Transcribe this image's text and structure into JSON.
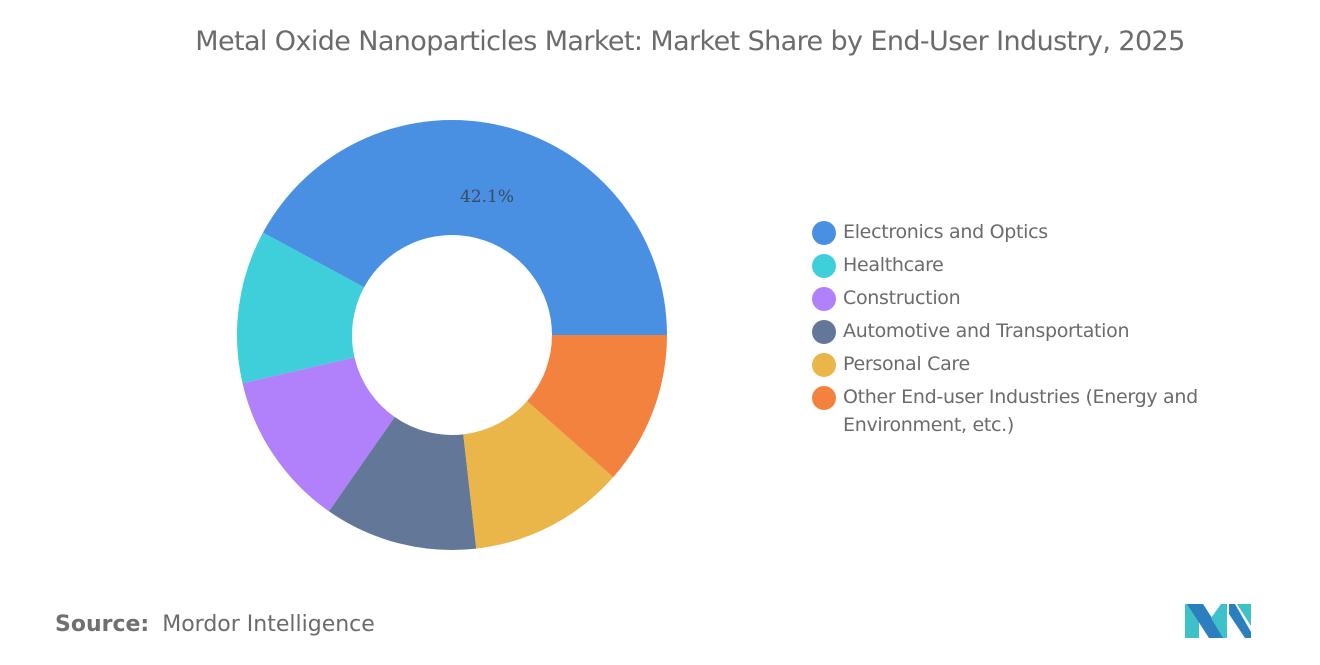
{
  "header": {
    "title": "Metal Oxide Nanoparticles Market: Market Share by End-User Industry, 2025"
  },
  "chart_data": {
    "type": "pie",
    "variant": "donut",
    "title": "Metal Oxide Nanoparticles Market: Market Share by End-User Industry, 2025",
    "categories": [
      "Electronics and Optics",
      "Healthcare",
      "Construction",
      "Automotive and Transportation",
      "Personal Care",
      "Other End-user Industries (Energy and Environment, etc.)"
    ],
    "values": [
      42.1,
      11.5,
      11.7,
      11.5,
      11.7,
      11.5
    ],
    "unit": "%",
    "data_labels": [
      {
        "category": "Electronics and Optics",
        "text": "42.1%"
      }
    ],
    "colors": [
      "#4A90E2",
      "#3FCFDA",
      "#B180FB",
      "#637898",
      "#EBB649",
      "#F3823F"
    ],
    "legend_position": "right",
    "start_angle_deg": 0,
    "direction": "counter-clockwise from 3 o'clock",
    "center": [
      452,
      335
    ],
    "outer_radius": 215,
    "inner_radius": 100
  },
  "legend": {
    "items": [
      {
        "label": "Electronics and Optics",
        "color": "#4A90E2"
      },
      {
        "label": "Healthcare",
        "color": "#3FCFDA"
      },
      {
        "label": "Construction",
        "color": "#B180FB"
      },
      {
        "label": "Automotive and Transportation",
        "color": "#637898"
      },
      {
        "label": "Personal Care",
        "color": "#EBB649"
      },
      {
        "label": "Other End-user Industries (Energy and Environment, etc.)",
        "color": "#F3823F"
      }
    ]
  },
  "footer": {
    "source_label": "Source:",
    "source_value": "Mordor Intelligence",
    "logo_icon": "mordor-intelligence-logo-icon",
    "logo_colors": [
      "#3FC1C9",
      "#2B7FBF"
    ]
  }
}
